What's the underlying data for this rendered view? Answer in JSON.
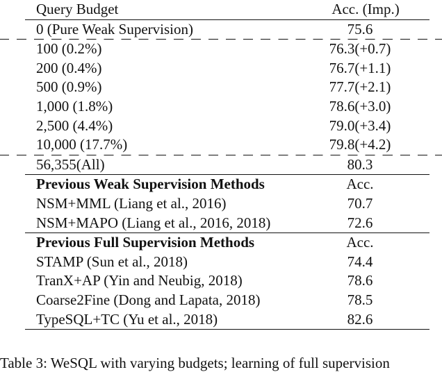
{
  "header": {
    "col_left": "Query Budget",
    "col_right": "Acc. (Imp.)"
  },
  "baseline": {
    "label": "0 (Pure Weak Supervision)",
    "value": "75.6"
  },
  "budget_rows": [
    {
      "label": "100 (0.2%)",
      "value": "76.3(+0.7)"
    },
    {
      "label": "200 (0.4%)",
      "value": "76.7(+1.1)"
    },
    {
      "label": "500 (0.9%)",
      "value": "77.7(+2.1)"
    },
    {
      "label": "1,000 (1.8%)",
      "value": "78.6(+3.0)"
    },
    {
      "label": "2,500 (4.4%)",
      "value": "79.0(+3.4)"
    },
    {
      "label": "10,000 (17.7%)",
      "value": "79.8(+4.2)"
    }
  ],
  "all_row": {
    "label": "56,355(All)",
    "value": "80.3"
  },
  "weak_section": {
    "title": "Previous Weak Supervision Methods",
    "acc_label": "Acc.",
    "rows": [
      {
        "label": "NSM+MML (Liang et al., 2016)",
        "value": "70.7"
      },
      {
        "label": "NSM+MAPO (Liang et al., 2016, 2018)",
        "value": "72.6"
      }
    ]
  },
  "full_section": {
    "title": "Previous Full Supervision Methods",
    "acc_label": "Acc.",
    "rows": [
      {
        "label": "STAMP (Sun et al., 2018)",
        "value": "74.4"
      },
      {
        "label": "TranX+AP (Yin and Neubig, 2018)",
        "value": "78.6"
      },
      {
        "label": "Coarse2Fine (Dong and Lapata, 2018)",
        "value": "78.5"
      },
      {
        "label": "TypeSQL+TC (Yu et al., 2018)",
        "value": "82.6"
      }
    ]
  },
  "caption": "Table 3: WeSQL with varying budgets; learning of full supervision"
}
